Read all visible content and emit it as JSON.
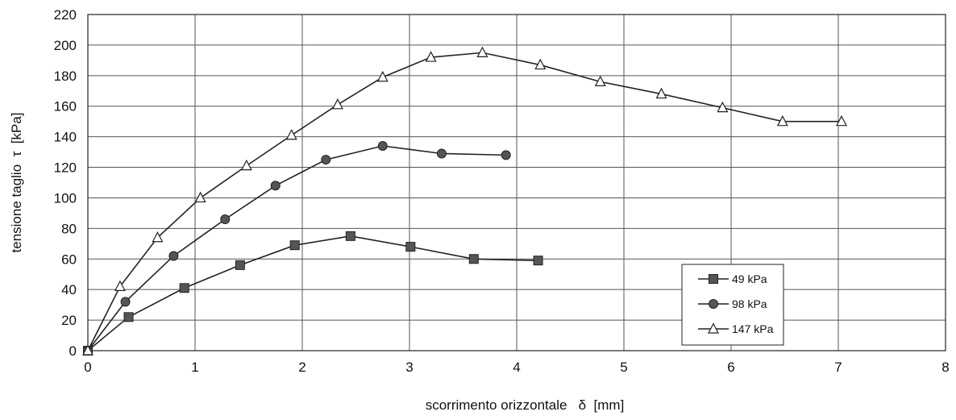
{
  "chart_data": {
    "type": "line",
    "xlabel": "scorrimento orizzontale   δ  [mm]",
    "ylabel": "tensione taglio  τ  [kPa]",
    "xlim": [
      0,
      8
    ],
    "ylim": [
      0,
      220
    ],
    "xticks": [
      "0",
      "1",
      "2",
      "3",
      "4",
      "5",
      "6",
      "7",
      "8"
    ],
    "yticks": [
      "0",
      "20",
      "40",
      "60",
      "80",
      "100",
      "120",
      "140",
      "160",
      "180",
      "200",
      "220"
    ],
    "xtick_values": [
      0,
      1,
      2,
      3,
      4,
      5,
      6,
      7,
      8
    ],
    "ytick_values": [
      0,
      20,
      40,
      60,
      80,
      100,
      120,
      140,
      160,
      180,
      200,
      220
    ],
    "grid": true,
    "legend_position": "bottom-right",
    "series": [
      {
        "name": "49 kPa",
        "marker": "square",
        "color": "#333333",
        "x": [
          0,
          0.38,
          0.9,
          1.42,
          1.93,
          2.45,
          3.01,
          3.6,
          4.2
        ],
        "y": [
          0,
          22,
          41,
          56,
          69,
          75,
          68,
          60,
          59
        ]
      },
      {
        "name": "98 kPa",
        "marker": "circle",
        "color": "#333333",
        "x": [
          0,
          0.35,
          0.8,
          1.28,
          1.75,
          2.22,
          2.75,
          3.3,
          3.9
        ],
        "y": [
          0,
          32,
          62,
          86,
          108,
          125,
          134,
          129,
          128
        ]
      },
      {
        "name": "147 kPa",
        "marker": "triangle",
        "color": "#333333",
        "x": [
          0,
          0.3,
          0.65,
          1.05,
          1.48,
          1.9,
          2.33,
          2.75,
          3.2,
          3.68,
          4.22,
          4.78,
          5.35,
          5.92,
          6.48,
          7.03
        ],
        "y": [
          0,
          42,
          74,
          100,
          121,
          141,
          161,
          179,
          192,
          195,
          187,
          176,
          168,
          159,
          150,
          150
        ]
      }
    ]
  }
}
